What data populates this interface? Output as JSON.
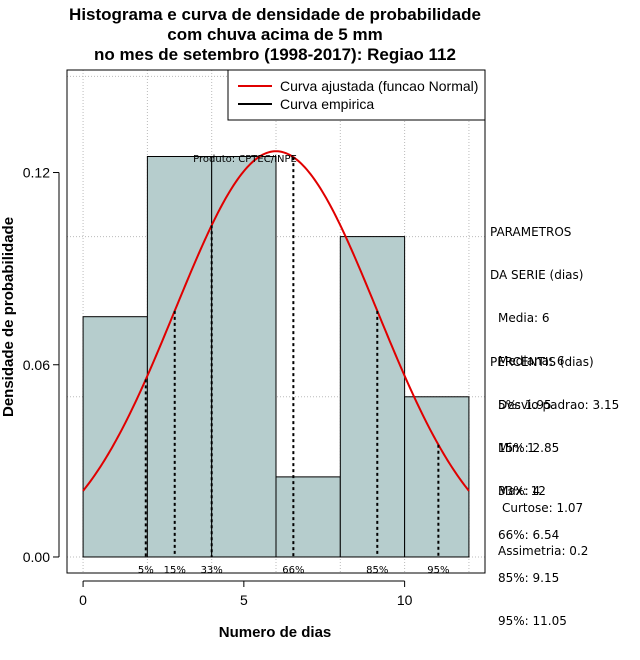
{
  "title": {
    "line1": "Histograma e curva de densidade de probabilidade",
    "line2": "com chuva acima de 5 mm",
    "line3": "no mes de setembro (1998-2017): Regiao 112"
  },
  "credit": "Produto: CPTEC/INPE",
  "legend": {
    "fitted": "Curva ajustada (funcao Normal)",
    "empirical": "Curva empirica"
  },
  "colors": {
    "bar_fill": "#b6cdcd",
    "fitted_curve": "#e00000",
    "grid": "#bbbbbb"
  },
  "params": {
    "heading1": "PARAMETROS",
    "heading2": "DA SERIE (dias)",
    "lines": [
      "Media: 6",
      "Mediana: 6",
      "Desvio padrao: 3.15",
      "Min: 1",
      "Max: 12"
    ]
  },
  "percentis": {
    "heading": "PERCENTIS (dias)",
    "lines": [
      "5%: 1.95",
      "15%: 2.85",
      "33%: 4",
      "66%: 6.54",
      "85%: 9.15",
      "95%: 11.05"
    ]
  },
  "shape": {
    "curtose": "Curtose: 1.07",
    "assimetria": "Assimetria: 0.2"
  },
  "chart_data": {
    "type": "bar",
    "title": "Histograma e curva de densidade de probabilidade com chuva acima de 5 mm no mes de setembro (1998-2017): Regiao 112",
    "xlabel": "Numero de dias",
    "ylabel": "Densidade de probabilidade",
    "xlim": [
      -0.5,
      12.5
    ],
    "ylim": [
      -0.005,
      0.152
    ],
    "x_ticks": [
      0,
      5,
      10
    ],
    "x_tick_labels": [
      "0",
      "5",
      "10"
    ],
    "y_ticks": [
      0.0,
      0.06,
      0.12
    ],
    "y_tick_labels": [
      "0.00",
      "0.06",
      "0.12"
    ],
    "grid": true,
    "bins": [
      {
        "from": 0,
        "to": 2,
        "density": 0.075
      },
      {
        "from": 2,
        "to": 4,
        "density": 0.125
      },
      {
        "from": 4,
        "to": 6,
        "density": 0.125
      },
      {
        "from": 6,
        "to": 8,
        "density": 0.025
      },
      {
        "from": 8,
        "to": 10,
        "density": 0.1
      },
      {
        "from": 10,
        "to": 12,
        "density": 0.05
      }
    ],
    "normal_fit": {
      "mean": 6,
      "sd": 3.15,
      "scale": 1.0
    },
    "percentiles": [
      {
        "label": "5%",
        "value": 1.95
      },
      {
        "label": "15%",
        "value": 2.85
      },
      {
        "label": "33%",
        "value": 4.0
      },
      {
        "label": "66%",
        "value": 6.54
      },
      {
        "label": "85%",
        "value": 9.15
      },
      {
        "label": "95%",
        "value": 11.05
      }
    ]
  }
}
